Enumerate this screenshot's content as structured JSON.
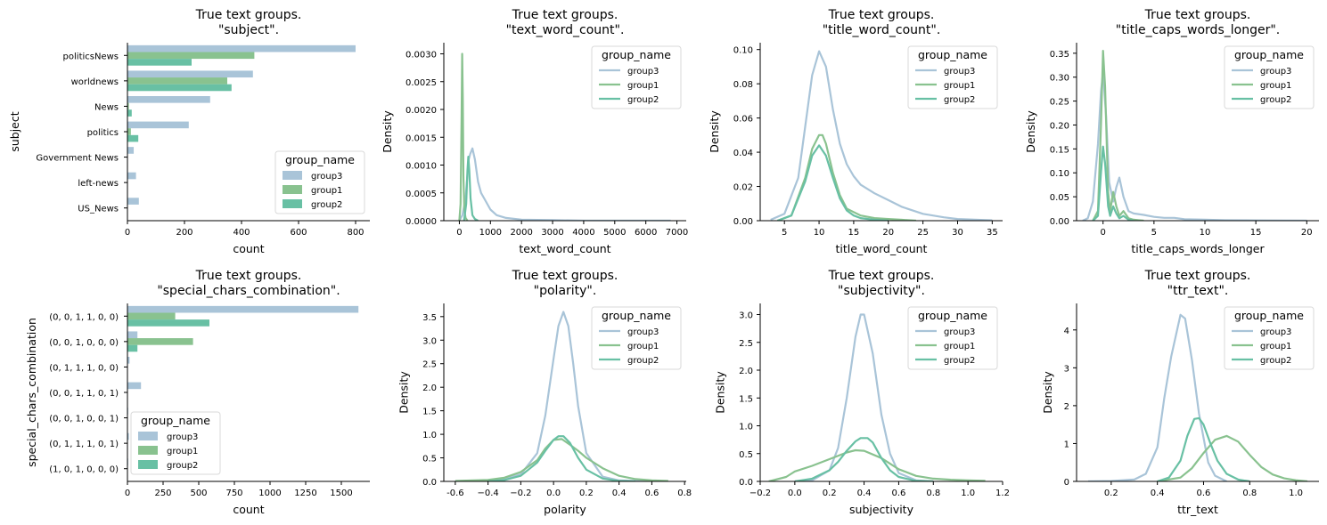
{
  "colors": {
    "group3": "#a9c4d8",
    "group1": "#89c28f",
    "group2": "#68c0a4",
    "axis": "#000000"
  },
  "chart_data": [
    {
      "type": "bar",
      "orientation": "horizontal",
      "title": "True text groups.\n\"subject\".",
      "xlabel": "count",
      "ylabel": "subject",
      "categories": [
        "politicsNews",
        "worldnews",
        "News",
        "politics",
        "Government News",
        "left-news",
        "US_News"
      ],
      "series": [
        {
          "name": "group3",
          "values": [
            800,
            440,
            290,
            215,
            22,
            30,
            40
          ]
        },
        {
          "name": "group1",
          "values": [
            445,
            350,
            5,
            12,
            0,
            0,
            0
          ]
        },
        {
          "name": "group2",
          "values": [
            225,
            365,
            15,
            38,
            0,
            0,
            0
          ]
        }
      ],
      "xlim": [
        0,
        850
      ],
      "xticks": [
        0,
        200,
        400,
        600,
        800
      ],
      "legend": {
        "title": "group_name",
        "position": "bottom-right"
      }
    },
    {
      "type": "line",
      "title": "True text groups.\n\"text_word_count\".",
      "xlabel": "text_word_count",
      "ylabel": "Density",
      "xlim": [
        -500,
        7300
      ],
      "ylim": [
        0,
        0.0032
      ],
      "xticks": [
        0,
        1000,
        2000,
        3000,
        4000,
        5000,
        6000,
        7000
      ],
      "yticks": [
        0,
        0.0005,
        0.001,
        0.0015,
        0.002,
        0.0025,
        0.003
      ],
      "ytick_labels": [
        "0.0000",
        "0.0005",
        "0.0010",
        "0.0015",
        "0.0020",
        "0.0025",
        "0.0030"
      ],
      "series": [
        {
          "name": "group3",
          "x": [
            0,
            100,
            200,
            300,
            350,
            420,
            500,
            600,
            700,
            800,
            1000,
            1200,
            1500,
            2000,
            3000,
            4000,
            5000,
            6000,
            6800
          ],
          "y": [
            0,
            0.0001,
            0.0004,
            0.0011,
            0.0012,
            0.0013,
            0.0011,
            0.0007,
            0.0005,
            0.0004,
            0.0002,
            0.0001,
            5e-05,
            2e-05,
            1e-05,
            0,
            0,
            0,
            0
          ]
        },
        {
          "name": "group1",
          "x": [
            0,
            40,
            70,
            90,
            110,
            130,
            160,
            200,
            260
          ],
          "y": [
            0,
            0.0003,
            0.0018,
            0.003,
            0.0022,
            0.0008,
            0.0002,
            5e-05,
            0
          ]
        },
        {
          "name": "group2",
          "x": [
            150,
            220,
            260,
            290,
            320,
            360,
            420,
            500,
            600
          ],
          "y": [
            0,
            0.0003,
            0.0009,
            0.00115,
            0.0009,
            0.0004,
            0.0001,
            3e-05,
            0
          ]
        }
      ],
      "legend": {
        "title": "group_name",
        "position": "top-right"
      }
    },
    {
      "type": "line",
      "title": "True text groups.\n\"title_word_count\".",
      "xlabel": "title_word_count",
      "ylabel": "Density",
      "xlim": [
        1.5,
        36.5
      ],
      "ylim": [
        0,
        0.104
      ],
      "xticks": [
        5,
        10,
        15,
        20,
        25,
        30,
        35
      ],
      "yticks": [
        0,
        0.02,
        0.04,
        0.06,
        0.08,
        0.1
      ],
      "ytick_labels": [
        "0.00",
        "0.02",
        "0.04",
        "0.06",
        "0.08",
        "0.10"
      ],
      "series": [
        {
          "name": "group3",
          "x": [
            3,
            5,
            7,
            8,
            9,
            10,
            11,
            12,
            13,
            14,
            15,
            16,
            18,
            20,
            22,
            25,
            28,
            30,
            35
          ],
          "y": [
            0.0005,
            0.004,
            0.025,
            0.055,
            0.085,
            0.099,
            0.09,
            0.065,
            0.045,
            0.033,
            0.026,
            0.021,
            0.016,
            0.012,
            0.008,
            0.004,
            0.002,
            0.001,
            0.0002
          ]
        },
        {
          "name": "group1",
          "x": [
            4,
            6,
            8,
            9,
            10,
            10.5,
            11,
            12,
            13,
            14,
            16,
            18,
            20,
            22,
            24
          ],
          "y": [
            0,
            0.003,
            0.025,
            0.042,
            0.05,
            0.05,
            0.045,
            0.028,
            0.015,
            0.007,
            0.003,
            0.0015,
            0.001,
            0.0005,
            0
          ]
        },
        {
          "name": "group2",
          "x": [
            4,
            6,
            8,
            9,
            10,
            11,
            12,
            13,
            14,
            15,
            16,
            18,
            20
          ],
          "y": [
            0,
            0.003,
            0.023,
            0.038,
            0.044,
            0.038,
            0.025,
            0.013,
            0.006,
            0.003,
            0.0015,
            0.0005,
            0
          ]
        }
      ],
      "legend": {
        "title": "group_name",
        "position": "top-right"
      }
    },
    {
      "type": "line",
      "title": "True text groups.\n\"title_caps_words_longer\".",
      "xlabel": "title_caps_words_longer",
      "ylabel": "Density",
      "xlim": [
        -2.6,
        21.2
      ],
      "ylim": [
        0,
        0.372
      ],
      "xticks": [
        0,
        5,
        10,
        15,
        20
      ],
      "yticks": [
        0,
        0.05,
        0.1,
        0.15,
        0.2,
        0.25,
        0.3,
        0.35
      ],
      "ytick_labels": [
        "0.00",
        "0.05",
        "0.10",
        "0.15",
        "0.20",
        "0.25",
        "0.30",
        "0.35"
      ],
      "series": [
        {
          "name": "group3",
          "x": [
            -2,
            -1.5,
            -1,
            -0.5,
            -0.2,
            0,
            0.3,
            0.6,
            1,
            1.3,
            1.6,
            2,
            2.5,
            3,
            4,
            5,
            6,
            7,
            8,
            10,
            12,
            15,
            20
          ],
          "y": [
            0,
            0.005,
            0.04,
            0.16,
            0.27,
            0.31,
            0.22,
            0.08,
            0.04,
            0.07,
            0.09,
            0.05,
            0.02,
            0.015,
            0.012,
            0.008,
            0.006,
            0.006,
            0.003,
            0.002,
            0.001,
            0.0005,
            0
          ]
        },
        {
          "name": "group1",
          "x": [
            -1,
            -0.5,
            -0.2,
            0,
            0.2,
            0.5,
            0.7,
            1,
            1.3,
            1.6,
            2,
            2.5,
            3,
            3.5,
            4
          ],
          "y": [
            0,
            0.02,
            0.2,
            0.355,
            0.28,
            0.06,
            0.02,
            0.06,
            0.03,
            0.01,
            0.02,
            0.005,
            0.002,
            0.001,
            0
          ]
        },
        {
          "name": "group2",
          "x": [
            -1,
            -0.5,
            -0.2,
            0,
            0.2,
            0.5,
            0.7,
            1,
            1.3,
            1.6,
            2,
            2.5,
            3
          ],
          "y": [
            0,
            0.01,
            0.1,
            0.155,
            0.12,
            0.03,
            0.01,
            0.03,
            0.015,
            0.005,
            0.01,
            0.002,
            0
          ]
        }
      ],
      "legend": {
        "title": "group_name",
        "position": "top-right"
      }
    },
    {
      "type": "bar",
      "orientation": "horizontal",
      "title": "True text groups.\n\"special_chars_combination\".",
      "xlabel": "count",
      "ylabel": "special_chars_combination",
      "categories": [
        "(0, 0, 1, 1, 0, 0)",
        "(0, 0, 1, 0, 0, 0)",
        "(0, 1, 1, 1, 0, 0)",
        "(0, 0, 1, 1, 0, 1)",
        "(0, 0, 1, 0, 0, 1)",
        "(0, 1, 1, 1, 0, 1)",
        "(1, 0, 1, 0, 0, 0)"
      ],
      "series": [
        {
          "name": "group3",
          "values": [
            1620,
            70,
            15,
            95,
            5,
            10,
            5
          ]
        },
        {
          "name": "group1",
          "values": [
            335,
            460,
            0,
            0,
            0,
            0,
            0
          ]
        },
        {
          "name": "group2",
          "values": [
            575,
            70,
            0,
            0,
            0,
            0,
            0
          ]
        }
      ],
      "xlim": [
        0,
        1700
      ],
      "xticks": [
        0,
        250,
        500,
        750,
        1000,
        1250,
        1500
      ],
      "legend": {
        "title": "group_name",
        "position": "bottom-left"
      }
    },
    {
      "type": "line",
      "title": "True text groups.\n\"polarity\".",
      "xlabel": "polarity",
      "ylabel": "Density",
      "xlim": [
        -0.67,
        0.81
      ],
      "ylim": [
        0,
        3.78
      ],
      "xticks": [
        -0.6,
        -0.4,
        -0.2,
        0,
        0.2,
        0.4,
        0.6,
        0.8
      ],
      "ytick_labels_x": [
        "-0.6",
        "−0.4",
        "−0.2",
        "0.0",
        "0.2",
        "0.4",
        "0.6",
        "0.8"
      ],
      "yticks": [
        0,
        0.5,
        1,
        1.5,
        2,
        2.5,
        3,
        3.5
      ],
      "ytick_labels": [
        "0.0",
        "0.5",
        "1.0",
        "1.5",
        "2.0",
        "2.5",
        "3.0",
        "3.5"
      ],
      "series": [
        {
          "name": "group3",
          "x": [
            -0.6,
            -0.4,
            -0.3,
            -0.2,
            -0.1,
            -0.05,
            0,
            0.03,
            0.06,
            0.09,
            0.12,
            0.15,
            0.2,
            0.3,
            0.4,
            0.6
          ],
          "y": [
            0,
            0.02,
            0.05,
            0.15,
            0.6,
            1.4,
            2.6,
            3.3,
            3.6,
            3.3,
            2.5,
            1.6,
            0.6,
            0.1,
            0.02,
            0
          ]
        },
        {
          "name": "group1",
          "x": [
            -0.6,
            -0.4,
            -0.3,
            -0.2,
            -0.1,
            -0.05,
            0,
            0.05,
            0.1,
            0.15,
            0.2,
            0.3,
            0.4,
            0.5,
            0.6,
            0.7
          ],
          "y": [
            0.01,
            0.03,
            0.08,
            0.2,
            0.45,
            0.7,
            0.88,
            0.9,
            0.78,
            0.65,
            0.5,
            0.28,
            0.12,
            0.05,
            0.02,
            0.01
          ]
        },
        {
          "name": "group2",
          "x": [
            -0.4,
            -0.3,
            -0.2,
            -0.1,
            -0.05,
            0,
            0.03,
            0.06,
            0.1,
            0.15,
            0.2,
            0.3,
            0.4,
            0.5
          ],
          "y": [
            0,
            0.03,
            0.12,
            0.4,
            0.65,
            0.88,
            0.96,
            0.96,
            0.82,
            0.5,
            0.25,
            0.06,
            0.01,
            0
          ]
        }
      ],
      "legend": {
        "title": "group_name",
        "position": "top-right"
      }
    },
    {
      "type": "line",
      "title": "True text groups.\n\"subjectivity\".",
      "xlabel": "subjectivity",
      "ylabel": "Density",
      "xlim": [
        -0.2,
        1.2
      ],
      "ylim": [
        0,
        3.2
      ],
      "xticks": [
        -0.2,
        0,
        0.2,
        0.4,
        0.6,
        0.8,
        1,
        1.2
      ],
      "ytick_labels_x": [
        "−0.2",
        "0.0",
        "0.2",
        "0.4",
        "0.6",
        "0.8",
        "1.0",
        "1.2"
      ],
      "yticks": [
        0,
        0.5,
        1,
        1.5,
        2,
        2.5,
        3
      ],
      "ytick_labels": [
        "0.0",
        "0.5",
        "1.0",
        "1.5",
        "2.0",
        "2.5",
        "3.0"
      ],
      "series": [
        {
          "name": "group3",
          "x": [
            0,
            0.1,
            0.2,
            0.25,
            0.3,
            0.35,
            0.38,
            0.4,
            0.45,
            0.5,
            0.55,
            0.6,
            0.7,
            0.8
          ],
          "y": [
            0,
            0.02,
            0.2,
            0.6,
            1.5,
            2.6,
            3.0,
            3.0,
            2.3,
            1.2,
            0.5,
            0.15,
            0.02,
            0
          ]
        },
        {
          "name": "group1",
          "x": [
            -0.15,
            -0.05,
            0,
            0.1,
            0.2,
            0.3,
            0.35,
            0.4,
            0.5,
            0.6,
            0.7,
            0.8,
            0.9,
            1,
            1.1
          ],
          "y": [
            0,
            0.08,
            0.18,
            0.28,
            0.4,
            0.52,
            0.56,
            0.55,
            0.42,
            0.22,
            0.1,
            0.05,
            0.03,
            0.02,
            0.01
          ]
        },
        {
          "name": "group2",
          "x": [
            0,
            0.1,
            0.2,
            0.25,
            0.3,
            0.35,
            0.38,
            0.42,
            0.45,
            0.5,
            0.55,
            0.6,
            0.7,
            0.8
          ],
          "y": [
            0,
            0.05,
            0.2,
            0.35,
            0.55,
            0.72,
            0.78,
            0.78,
            0.7,
            0.42,
            0.2,
            0.08,
            0.01,
            0
          ]
        }
      ],
      "legend": {
        "title": "group_name",
        "position": "top-right"
      }
    },
    {
      "type": "line",
      "title": "True text groups.\n\"ttr_text\".",
      "xlabel": "ttr_text",
      "ylabel": "Density",
      "xlim": [
        0.05,
        1.1
      ],
      "ylim": [
        0,
        4.7
      ],
      "xticks": [
        0.2,
        0.4,
        0.6,
        0.8,
        1
      ],
      "ytick_labels_x": [
        "0.2",
        "0.4",
        "0.6",
        "0.8",
        "1.0"
      ],
      "yticks": [
        0,
        1,
        2,
        3,
        4
      ],
      "ytick_labels": [
        "0",
        "1",
        "2",
        "3",
        "4"
      ],
      "series": [
        {
          "name": "group3",
          "x": [
            0.1,
            0.2,
            0.3,
            0.35,
            0.4,
            0.43,
            0.46,
            0.5,
            0.52,
            0.55,
            0.58,
            0.62,
            0.65,
            0.7
          ],
          "y": [
            0,
            0.01,
            0.05,
            0.2,
            0.9,
            2.2,
            3.3,
            4.4,
            4.3,
            3.2,
            1.8,
            0.5,
            0.15,
            0
          ]
        },
        {
          "name": "group1",
          "x": [
            0.4,
            0.5,
            0.55,
            0.6,
            0.65,
            0.7,
            0.75,
            0.8,
            0.85,
            0.9,
            0.95,
            1,
            1.05
          ],
          "y": [
            0,
            0.1,
            0.35,
            0.75,
            1.1,
            1.2,
            1.05,
            0.7,
            0.38,
            0.18,
            0.08,
            0.03,
            0
          ]
        },
        {
          "name": "group2",
          "x": [
            0.4,
            0.45,
            0.5,
            0.53,
            0.56,
            0.58,
            0.6,
            0.63,
            0.66,
            0.7,
            0.75,
            0.8
          ],
          "y": [
            0,
            0.1,
            0.55,
            1.2,
            1.65,
            1.67,
            1.5,
            1.0,
            0.55,
            0.2,
            0.05,
            0
          ]
        }
      ],
      "legend": {
        "title": "group_name",
        "position": "top-right"
      }
    }
  ]
}
